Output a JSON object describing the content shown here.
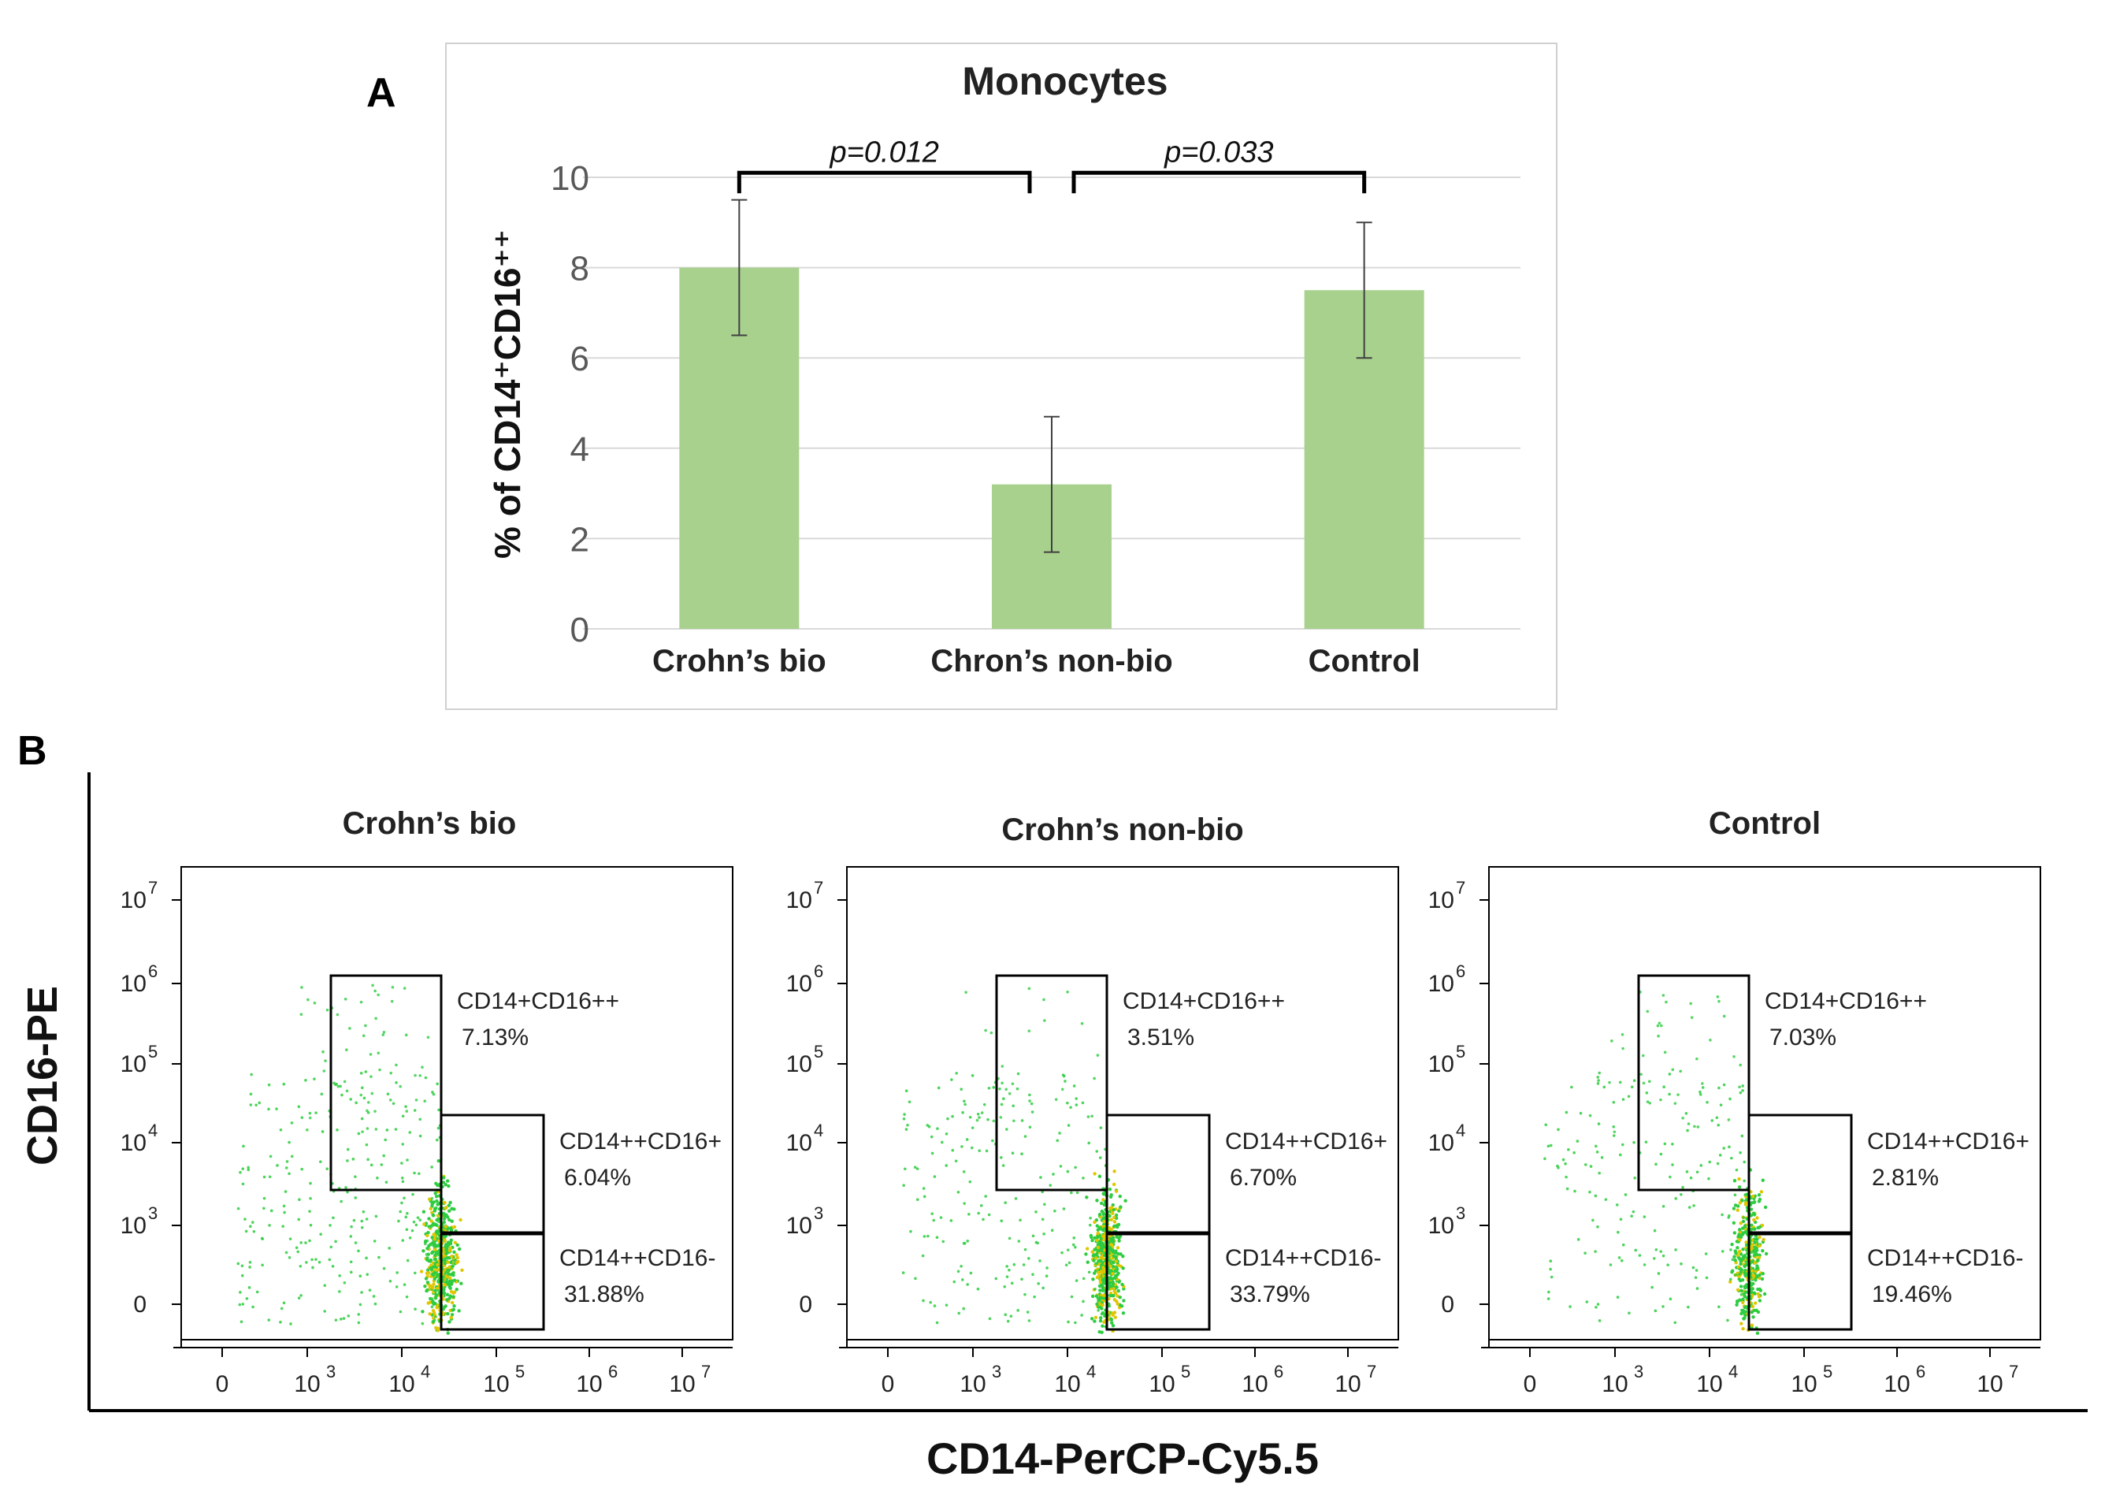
{
  "panel_a_label": "A",
  "panel_b_label": "B",
  "chart_data": [
    {
      "type": "bar",
      "title": "Monocytes",
      "ylabel": "% of CD14⁺CD16⁺⁺",
      "xlabel": "",
      "categories": [
        "Crohn’s bio",
        "Chron’s non-bio",
        "Control"
      ],
      "values": [
        8.0,
        3.2,
        7.5
      ],
      "error_low": [
        6.5,
        1.7,
        6.0
      ],
      "error_high": [
        9.5,
        4.7,
        9.0
      ],
      "ylim": [
        0,
        10
      ],
      "yticks": [
        "0",
        "2",
        "4",
        "6",
        "8",
        "10"
      ],
      "grid": true,
      "bar_color": "#a9d18e",
      "significance": [
        {
          "from": 0,
          "to": 1,
          "label": "p=0.012"
        },
        {
          "from": 1,
          "to": 2,
          "label": "p=0.033"
        }
      ]
    },
    {
      "type": "scatter",
      "xlabel": "CD14-PerCP-Cy5.5",
      "ylabel": "CD16-PE",
      "x_ticks": [
        "0",
        "10",
        "10",
        "10",
        "10",
        "10"
      ],
      "x_tick_exponents": [
        "",
        "3",
        "4",
        "5",
        "6",
        "7"
      ],
      "y_ticks": [
        "0",
        "10",
        "10",
        "10",
        "10",
        "10"
      ],
      "y_tick_exponents": [
        "",
        "3",
        "4",
        "5",
        "6",
        "7"
      ],
      "point_color": "#2ecc40",
      "panels": [
        {
          "title": "Crohn’s bio",
          "gates": [
            {
              "name": "CD14+CD16++",
              "percent": "7.13%"
            },
            {
              "name": "CD14++CD16+",
              "percent": "6.04%"
            },
            {
              "name": "CD14++CD16-",
              "percent": "31.88%"
            }
          ]
        },
        {
          "title": "Crohn’s non-bio",
          "gates": [
            {
              "name": "CD14+CD16++",
              "percent": "3.51%"
            },
            {
              "name": "CD14++CD16+",
              "percent": "6.70%"
            },
            {
              "name": "CD14++CD16-",
              "percent": "33.79%"
            }
          ]
        },
        {
          "title": "Control",
          "gates": [
            {
              "name": "CD14+CD16++",
              "percent": "7.03%"
            },
            {
              "name": "CD14++CD16+",
              "percent": "2.81%"
            },
            {
              "name": "CD14++CD16-",
              "percent": "19.46%"
            }
          ]
        }
      ]
    }
  ]
}
